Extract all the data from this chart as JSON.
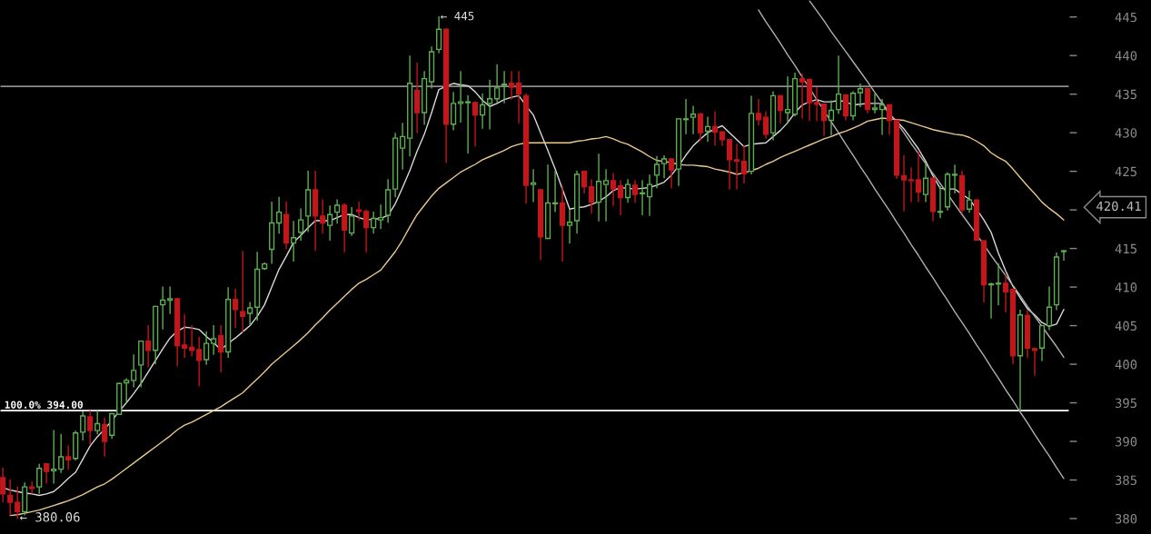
{
  "chart_data": {
    "type": "candlestick",
    "categories": [
      null,
      null,
      null,
      null,
      null,
      null,
      null,
      null,
      null,
      null,
      null,
      null,
      null,
      null,
      null,
      null,
      null,
      null,
      null,
      null,
      null,
      null,
      null,
      null,
      null,
      null,
      null,
      null,
      null,
      null,
      null,
      null,
      null,
      null,
      null,
      null,
      null,
      null,
      null,
      null,
      null,
      null,
      null,
      null,
      null,
      null,
      null,
      null,
      null,
      null,
      null,
      null,
      null,
      null,
      null,
      null,
      null,
      null,
      null,
      null,
      null,
      null,
      null,
      null,
      null,
      null,
      null,
      null,
      null,
      null,
      null,
      null,
      null,
      null,
      null,
      null,
      null,
      null,
      null,
      null,
      null,
      null,
      null,
      null,
      null,
      null,
      null,
      null,
      null,
      null,
      null,
      null,
      null,
      null,
      null,
      null,
      null,
      null,
      null,
      null,
      null,
      null,
      null,
      null,
      null,
      null,
      null,
      null,
      null,
      null,
      null,
      null,
      null,
      null,
      null,
      null,
      null,
      null,
      null,
      null,
      null,
      null,
      null,
      null,
      null,
      null,
      null,
      null,
      null,
      null,
      null,
      null,
      null,
      null,
      null,
      null,
      null,
      null,
      null,
      null,
      null,
      null,
      null,
      null,
      null,
      null,
      null
    ],
    "ohlc": [
      [
        385.3,
        386.5,
        382.2,
        383.2
      ],
      [
        383.0,
        385.0,
        380.5,
        382.1
      ],
      [
        382.1,
        384.1,
        380.06,
        380.9
      ],
      [
        380.9,
        384.6,
        380.5,
        384.1
      ],
      [
        384.1,
        384.7,
        383.3,
        383.9
      ],
      [
        384.1,
        387.0,
        383.3,
        386.5
      ],
      [
        387.1,
        387.1,
        384.6,
        386.1
      ],
      [
        386.2,
        391.4,
        384.6,
        386.4
      ],
      [
        386.4,
        390.9,
        386.0,
        388.0
      ],
      [
        388.0,
        389.4,
        386.4,
        387.6
      ],
      [
        387.8,
        391.3,
        387.6,
        391.1
      ],
      [
        391.2,
        393.8,
        390.2,
        393.3
      ],
      [
        393.2,
        393.9,
        389.7,
        391.4
      ],
      [
        391.4,
        393.9,
        391.0,
        392.3
      ],
      [
        392.2,
        393.0,
        388.1,
        390.0
      ],
      [
        390.8,
        393.6,
        390.4,
        393.6
      ],
      [
        393.5,
        397.5,
        393.5,
        397.5
      ],
      [
        397.6,
        398.1,
        395.1,
        397.9
      ],
      [
        397.9,
        401.2,
        397.1,
        399.2
      ],
      [
        399.9,
        403.0,
        397.1,
        403.0
      ],
      [
        403.0,
        405.0,
        399.7,
        401.8
      ],
      [
        401.8,
        407.5,
        400.1,
        407.5
      ],
      [
        407.7,
        410.0,
        404.6,
        408.3
      ],
      [
        408.3,
        410.0,
        406.6,
        408.5
      ],
      [
        408.5,
        408.5,
        399.8,
        402.4
      ],
      [
        402.5,
        406.4,
        400.9,
        402.1
      ],
      [
        402.2,
        405.0,
        401.1,
        401.8
      ],
      [
        401.9,
        403.5,
        397.2,
        400.5
      ],
      [
        400.6,
        404.2,
        400.0,
        402.7
      ],
      [
        402.7,
        405.0,
        401.3,
        403.3
      ],
      [
        403.7,
        405.0,
        399.0,
        401.6
      ],
      [
        401.6,
        409.9,
        400.9,
        408.4
      ],
      [
        408.4,
        409.7,
        404.8,
        407.1
      ],
      [
        406.8,
        414.6,
        404.2,
        406.2
      ],
      [
        406.6,
        408.0,
        405.2,
        407.3
      ],
      [
        407.4,
        414.5,
        405.7,
        412.3
      ],
      [
        412.4,
        413.1,
        412.3,
        413.0
      ],
      [
        414.9,
        421.0,
        413.1,
        418.3
      ],
      [
        418.3,
        421.6,
        417.0,
        419.7
      ],
      [
        419.4,
        421.0,
        415.0,
        415.7
      ],
      [
        415.7,
        418.5,
        413.4,
        416.4
      ],
      [
        417.1,
        420.1,
        416.1,
        418.7
      ],
      [
        419.2,
        425.0,
        417.2,
        422.6
      ],
      [
        422.6,
        425.0,
        414.8,
        419.2
      ],
      [
        419.2,
        421.3,
        417.0,
        418.3
      ],
      [
        418.0,
        420.5,
        416.1,
        419.4
      ],
      [
        419.7,
        421.3,
        418.3,
        420.6
      ],
      [
        420.6,
        420.8,
        414.6,
        417.4
      ],
      [
        417.0,
        420.3,
        416.7,
        419.2
      ],
      [
        420.0,
        421.0,
        418.7,
        419.8
      ],
      [
        419.8,
        420.0,
        414.6,
        417.7
      ],
      [
        417.7,
        419.7,
        417.0,
        418.9
      ],
      [
        418.7,
        420.6,
        417.6,
        419.0
      ],
      [
        419.3,
        423.9,
        418.4,
        422.6
      ],
      [
        422.7,
        429.9,
        421.7,
        429.3
      ],
      [
        428.0,
        431.2,
        425.3,
        429.5
      ],
      [
        429.3,
        439.9,
        427.0,
        436.4
      ],
      [
        435.5,
        439.0,
        430.0,
        432.6
      ],
      [
        432.6,
        437.9,
        431.1,
        437.0
      ],
      [
        436.6,
        441.1,
        435.8,
        440.5
      ],
      [
        440.8,
        445,
        440.4,
        443.4
      ],
      [
        443.4,
        443.4,
        426.2,
        431.1
      ],
      [
        431.1,
        435.2,
        430.4,
        433.8
      ],
      [
        433.8,
        437.9,
        431.4,
        434.0
      ],
      [
        433.9,
        434.8,
        427.4,
        434.0
      ],
      [
        433.9,
        434.0,
        428.3,
        432.3
      ],
      [
        432.3,
        435.0,
        430.6,
        433.6
      ],
      [
        433.8,
        436.8,
        430.5,
        434.4
      ],
      [
        434.4,
        438.8,
        434.0,
        435.8
      ],
      [
        436.2,
        437.9,
        433.9,
        436.3
      ],
      [
        436.4,
        437.9,
        434.4,
        435.9
      ],
      [
        436.4,
        437.9,
        431.3,
        435.0
      ],
      [
        434.8,
        435.0,
        420.9,
        423.2
      ],
      [
        423.3,
        425.2,
        421.1,
        423.5
      ],
      [
        422.6,
        422.6,
        413.6,
        416.5
      ],
      [
        416.3,
        425.8,
        416.3,
        420.9
      ],
      [
        420.8,
        425.0,
        419.8,
        420.9
      ],
      [
        420.9,
        422.9,
        413.4,
        418.0
      ],
      [
        418.0,
        420.0,
        415.7,
        418.4
      ],
      [
        418.6,
        425.0,
        417.0,
        424.6
      ],
      [
        425.0,
        425.0,
        422.2,
        423.0
      ],
      [
        423.0,
        423.9,
        419.6,
        421.0
      ],
      [
        421.0,
        427.2,
        418.6,
        423.7
      ],
      [
        423.3,
        425.2,
        418.6,
        423.8
      ],
      [
        423.8,
        424.7,
        420.6,
        422.7
      ],
      [
        423.1,
        423.8,
        419.4,
        421.6
      ],
      [
        421.6,
        423.9,
        421.0,
        423.3
      ],
      [
        423.2,
        423.8,
        421.0,
        422.0
      ],
      [
        422.1,
        423.8,
        419.4,
        422.2
      ],
      [
        421.7,
        424.5,
        419.3,
        423.3
      ],
      [
        424.5,
        426.9,
        422.9,
        425.9
      ],
      [
        426.0,
        427.0,
        424.2,
        426.6
      ],
      [
        426.6,
        426.6,
        422.9,
        425.2
      ],
      [
        425.3,
        431.8,
        423.2,
        431.8
      ],
      [
        431.7,
        434.3,
        429.9,
        431.8
      ],
      [
        432.0,
        433.4,
        429.9,
        432.4
      ],
      [
        432.4,
        432.5,
        429.0,
        430.0
      ],
      [
        430.2,
        432.0,
        428.9,
        430.8
      ],
      [
        430.8,
        432.7,
        428.4,
        430.1
      ],
      [
        430.1,
        430.1,
        428.4,
        429.1
      ],
      [
        429.1,
        429.1,
        422.7,
        426.5
      ],
      [
        426.5,
        428.5,
        422.7,
        426.3
      ],
      [
        426.3,
        428.3,
        423.5,
        424.7
      ],
      [
        425.0,
        434.7,
        424.7,
        432.5
      ],
      [
        432.5,
        434.3,
        431.0,
        431.7
      ],
      [
        432.0,
        432.7,
        429.3,
        429.8
      ],
      [
        430.0,
        435.3,
        429.1,
        434.8
      ],
      [
        434.8,
        434.8,
        431.3,
        432.9
      ],
      [
        432.6,
        437.2,
        431.3,
        433.0
      ],
      [
        432.4,
        437.7,
        432.2,
        437.0
      ],
      [
        437.0,
        437.6,
        431.9,
        436.6
      ],
      [
        436.9,
        436.9,
        431.6,
        433.9
      ],
      [
        433.9,
        435.8,
        431.6,
        433.7
      ],
      [
        433.7,
        433.7,
        429.7,
        431.6
      ],
      [
        431.6,
        434.1,
        429.7,
        432.9
      ],
      [
        433.0,
        439.9,
        432.5,
        435.0
      ],
      [
        434.9,
        434.9,
        431.7,
        432.2
      ],
      [
        432.2,
        435.3,
        431.7,
        435.1
      ],
      [
        435.2,
        436.3,
        433.4,
        435.7
      ],
      [
        435.7,
        435.7,
        432.6,
        433.0
      ],
      [
        433.0,
        435.0,
        432.6,
        433.2
      ],
      [
        433.0,
        434.3,
        429.8,
        433.6
      ],
      [
        433.6,
        433.6,
        429.8,
        431.6
      ],
      [
        431.6,
        431.6,
        424.1,
        424.5
      ],
      [
        424.4,
        427.0,
        419.9,
        423.9
      ],
      [
        423.9,
        425.4,
        421.1,
        423.8
      ],
      [
        423.9,
        427.5,
        421.1,
        422.3
      ],
      [
        422.0,
        426.0,
        421.1,
        424.1
      ],
      [
        424.1,
        424.1,
        418.6,
        419.8
      ],
      [
        419.7,
        423.0,
        419.0,
        419.8
      ],
      [
        420.4,
        424.8,
        420.0,
        424.6
      ],
      [
        424.5,
        425.8,
        422.2,
        424.6
      ],
      [
        424.4,
        425.0,
        419.7,
        420.0
      ],
      [
        420.1,
        422.4,
        419.7,
        421.3
      ],
      [
        421.3,
        421.3,
        416.1,
        416.1
      ],
      [
        416.0,
        416.0,
        408.1,
        410.3
      ],
      [
        410.3,
        410.5,
        406.0,
        410.4
      ],
      [
        410.4,
        413.0,
        407.7,
        410.5
      ],
      [
        410.5,
        411.5,
        406.8,
        409.4
      ],
      [
        409.7,
        409.7,
        400.1,
        401.1
      ],
      [
        401.1,
        407.0,
        394.0,
        406.4
      ],
      [
        406.3,
        407.0,
        400.9,
        402.1
      ],
      [
        402.0,
        402.1,
        398.6,
        401.8
      ],
      [
        402.1,
        405.0,
        400.5,
        405.0
      ],
      [
        405.0,
        410.0,
        404.5,
        407.4
      ],
      [
        407.7,
        414.4,
        407.1,
        413.9
      ],
      [
        414.6,
        414.7,
        413.5,
        414.7
      ]
    ],
    "colors": [
      "#c0171d",
      "#c0171d",
      "#c0171d",
      "#5fae54",
      "#c0171d",
      "#5fae54",
      "#c0171d",
      "#5fae54",
      "#5fae54",
      "#c0171d",
      "#5fae54",
      "#5fae54",
      "#c0171d",
      "#5fae54",
      "#c0171d",
      "#5fae54",
      "#5fae54",
      "#5fae54",
      "#5fae54",
      "#5fae54",
      "#c0171d",
      "#5fae54",
      "#5fae54",
      "#5fae54",
      "#c0171d",
      "#c0171d",
      "#c0171d",
      "#c0171d",
      "#5fae54",
      "#5fae54",
      "#c0171d",
      "#5fae54",
      "#c0171d",
      "#c0171d",
      "#5fae54",
      "#5fae54",
      "#5fae54",
      "#5fae54",
      "#5fae54",
      "#c0171d",
      "#5fae54",
      "#5fae54",
      "#5fae54",
      "#c0171d",
      "#c0171d",
      "#5fae54",
      "#5fae54",
      "#c0171d",
      "#5fae54",
      "#c0171d",
      "#c0171d",
      "#5fae54",
      "#5fae54",
      "#5fae54",
      "#5fae54",
      "#5fae54",
      "#5fae54",
      "#c0171d",
      "#5fae54",
      "#5fae54",
      "#5fae54",
      "#c0171d",
      "#5fae54",
      "#5fae54",
      "#5fae54",
      "#c0171d",
      "#5fae54",
      "#5fae54",
      "#5fae54",
      "#5fae54",
      "#c0171d",
      "#c0171d",
      "#c0171d",
      "#5fae54",
      "#c0171d",
      "#5fae54",
      "#5fae54",
      "#c0171d",
      "#5fae54",
      "#5fae54",
      "#c0171d",
      "#c0171d",
      "#5fae54",
      "#5fae54",
      "#c0171d",
      "#c0171d",
      "#5fae54",
      "#c0171d",
      "#5fae54",
      "#5fae54",
      "#5fae54",
      "#5fae54",
      "#c0171d",
      "#5fae54",
      "#5fae54",
      "#5fae54",
      "#c0171d",
      "#5fae54",
      "#c0171d",
      "#c0171d",
      "#c0171d",
      "#c0171d",
      "#c0171d",
      "#5fae54",
      "#c0171d",
      "#c0171d",
      "#5fae54",
      "#c0171d",
      "#5fae54",
      "#5fae54",
      "#c0171d",
      "#c0171d",
      "#c0171d",
      "#c0171d",
      "#5fae54",
      "#5fae54",
      "#c0171d",
      "#5fae54",
      "#5fae54",
      "#c0171d",
      "#5fae54",
      "#5fae54",
      "#c0171d",
      "#c0171d",
      "#c0171d",
      "#c0171d",
      "#c0171d",
      "#5fae54",
      "#c0171d",
      "#5fae54",
      "#5fae54",
      "#5fae54",
      "#c0171d",
      "#5fae54",
      "#c0171d",
      "#c0171d",
      "#5fae54",
      "#5fae54",
      "#c0171d",
      "#c0171d",
      "#5fae54",
      "#c0171d",
      "#c0171d",
      "#5fae54",
      "#5fae54",
      "#5fae54",
      "#5fae54"
    ],
    "series": [
      {
        "type": "line",
        "color": "#d9d9d9",
        "values": [
          384.0,
          383.7,
          383.5,
          383.3,
          383.2,
          383.0,
          383.2,
          383.5,
          384.3,
          385.2,
          386.0,
          387.7,
          389.4,
          390.6,
          391.6,
          392.7,
          393.9,
          395.0,
          396.2,
          397.5,
          399.0,
          400.5,
          402.0,
          403.4,
          404.3,
          404.8,
          404.7,
          404.5,
          403.6,
          402.8,
          401.9,
          402.7,
          403.4,
          404.2,
          405.0,
          406.2,
          407.7,
          410.0,
          412.3,
          414.0,
          415.8,
          416.7,
          417.7,
          418.6,
          418.6,
          418.6,
          419.0,
          419.4,
          419.4,
          419.0,
          418.7,
          418.8,
          418.9,
          419.3,
          420.8,
          422.9,
          425.1,
          427.6,
          429.8,
          432.6,
          435.6,
          436.0,
          436.4,
          436.2,
          436.1,
          435.3,
          434.2,
          433.4,
          433.8,
          434.3,
          434.6,
          434.8,
          433.5,
          432.3,
          430.0,
          427.7,
          425.3,
          422.7,
          420.1,
          420.3,
          420.4,
          420.7,
          421.1,
          421.7,
          422.5,
          422.9,
          422.8,
          422.7,
          422.8,
          422.9,
          423.2,
          423.6,
          424.5,
          425.7,
          427.1,
          428.3,
          429.2,
          430.0,
          430.5,
          430.9,
          430.0,
          429.1,
          428.2,
          428.5,
          428.6,
          428.7,
          429.5,
          430.3,
          431.3,
          432.6,
          433.6,
          434.0,
          434.3,
          434.0,
          434.0,
          434.2,
          434.0,
          433.6,
          433.7,
          433.8,
          433.8,
          433.8,
          432.4,
          431.5,
          430.5,
          429.2,
          427.9,
          426.3,
          424.4,
          422.8,
          422.7,
          422.7,
          422.0,
          421.4,
          420.1,
          418.7,
          417.1,
          414.4,
          412.1,
          410.1,
          408.6,
          407.2,
          406.4,
          405.4,
          404.9,
          405.2,
          407.1
        ]
      },
      {
        "type": "line",
        "color": "#e9c98f",
        "values": [
          null,
          380.4,
          380.5,
          380.7,
          380.9,
          381.1,
          381.4,
          381.7,
          382.0,
          382.3,
          382.7,
          383.1,
          383.6,
          384.1,
          384.5,
          385.1,
          385.8,
          386.5,
          387.2,
          387.9,
          388.6,
          389.3,
          390.0,
          390.7,
          391.5,
          392.1,
          392.5,
          393.0,
          393.5,
          394.0,
          394.5,
          395.1,
          395.7,
          396.3,
          397.2,
          398.1,
          399.0,
          400.0,
          400.8,
          401.6,
          402.4,
          403.2,
          404.1,
          405.1,
          406.0,
          407.0,
          407.9,
          408.8,
          409.7,
          410.5,
          411.0,
          411.6,
          412.2,
          413.4,
          414.6,
          416.1,
          417.8,
          419.4,
          420.6,
          421.8,
          422.8,
          423.5,
          424.2,
          424.9,
          425.4,
          425.9,
          426.5,
          426.9,
          427.3,
          427.7,
          428.2,
          428.5,
          428.7,
          428.7,
          428.7,
          428.7,
          428.7,
          428.7,
          428.7,
          428.9,
          429.0,
          429.2,
          429.3,
          429.5,
          429.2,
          428.8,
          428.5,
          428.0,
          427.5,
          426.9,
          426.4,
          426.3,
          426.1,
          425.9,
          425.8,
          425.8,
          425.7,
          425.6,
          425.3,
          425.1,
          424.9,
          424.6,
          424.8,
          425.1,
          425.4,
          425.9,
          426.3,
          426.8,
          427.2,
          427.6,
          428.0,
          428.4,
          428.8,
          429.2,
          429.5,
          429.9,
          430.2,
          430.6,
          431.0,
          431.5,
          431.7,
          431.9,
          431.8,
          431.7,
          431.6,
          431.3,
          431.0,
          430.7,
          430.4,
          430.2,
          430.0,
          429.8,
          429.7,
          429.4,
          428.9,
          428.3,
          427.4,
          426.8,
          426.3,
          425.3,
          424.2,
          423.1,
          422.1,
          421.0,
          420.2,
          419.5,
          418.7
        ]
      },
      {
        "type": "line",
        "color": "#b0b0b0",
        "values": [
          null,
          null,
          null,
          null,
          null,
          null,
          null,
          null,
          null,
          null,
          null,
          null,
          null,
          null,
          null,
          null,
          null,
          null,
          null,
          null,
          null,
          null,
          null,
          null,
          null,
          null,
          null,
          null,
          null,
          null,
          null,
          null,
          null,
          null,
          null,
          null,
          null,
          null,
          null,
          null,
          null,
          null,
          null,
          null,
          null,
          null,
          null,
          null,
          null,
          null,
          null,
          null,
          null,
          null,
          null,
          null,
          null,
          null,
          null,
          null,
          null,
          null,
          null,
          null,
          null,
          null,
          null,
          null,
          null,
          null,
          null,
          null,
          null,
          null,
          null,
          null,
          null,
          null,
          null,
          null,
          null,
          null,
          null,
          null,
          null,
          null,
          null,
          null,
          null,
          null,
          null,
          null,
          null,
          null,
          null,
          null,
          null,
          null,
          null,
          null,
          null,
          null,
          null,
          null,
          445.9,
          444.4,
          443.0,
          441.6,
          440.1,
          438.7,
          437.2,
          435.8,
          434.3,
          432.9,
          431.4,
          430.0,
          428.5,
          427.1,
          425.6,
          424.2,
          422.7,
          421.3,
          419.9,
          418.4,
          417.0,
          415.5,
          414.1,
          412.6,
          411.2,
          409.7,
          408.3,
          406.8,
          405.4,
          404.0,
          402.5,
          401.1,
          399.6,
          398.2,
          396.7,
          395.3,
          393.8,
          392.4,
          390.9,
          389.5,
          388.1,
          386.6,
          385.2
        ]
      },
      {
        "type": "line",
        "color": "#b0b0b0",
        "values": [
          null,
          null,
          null,
          null,
          null,
          null,
          null,
          null,
          null,
          null,
          null,
          null,
          null,
          null,
          null,
          null,
          null,
          null,
          null,
          null,
          null,
          null,
          null,
          null,
          null,
          null,
          null,
          null,
          null,
          null,
          null,
          null,
          null,
          null,
          null,
          null,
          null,
          null,
          null,
          null,
          null,
          null,
          null,
          null,
          null,
          null,
          null,
          null,
          null,
          null,
          null,
          null,
          null,
          null,
          null,
          null,
          null,
          null,
          null,
          null,
          null,
          null,
          null,
          null,
          null,
          null,
          null,
          null,
          null,
          null,
          null,
          null,
          null,
          null,
          null,
          null,
          null,
          null,
          null,
          null,
          null,
          null,
          null,
          null,
          null,
          null,
          null,
          null,
          null,
          null,
          null,
          null,
          null,
          null,
          null,
          null,
          null,
          null,
          null,
          null,
          null,
          null,
          null,
          null,
          null,
          null,
          null,
          null,
          null,
          null,
          null,
          447.1,
          445.8,
          444.5,
          443.1,
          441.8,
          440.5,
          439.2,
          437.9,
          436.6,
          435.2,
          433.9,
          432.6,
          431.3,
          430.0,
          428.6,
          427.3,
          426.0,
          424.7,
          423.4,
          422.1,
          420.7,
          419.4,
          418.1,
          416.8,
          415.5,
          414.1,
          412.8,
          411.5,
          410.2,
          408.9,
          407.5,
          406.2,
          404.9,
          403.6,
          402.3,
          400.9
        ]
      }
    ],
    "ylim": [
      378,
      447.2
    ],
    "yticks": [
      380,
      385,
      390,
      395,
      400,
      405,
      410,
      415,
      {
        "value": 420,
        "label": null
      },
      425,
      430,
      435,
      440,
      445
    ],
    "tick_labels": "y",
    "grid": false,
    "ref_lines": [
      {
        "axis": "y",
        "value": 436,
        "color": "#8c8c8c"
      },
      {
        "axis": "y",
        "value": 394,
        "label": "100.0% 394.00",
        "color": "#ffffff"
      }
    ],
    "annotations": [
      "← 445",
      "← 380.06",
      "420.41"
    ]
  }
}
